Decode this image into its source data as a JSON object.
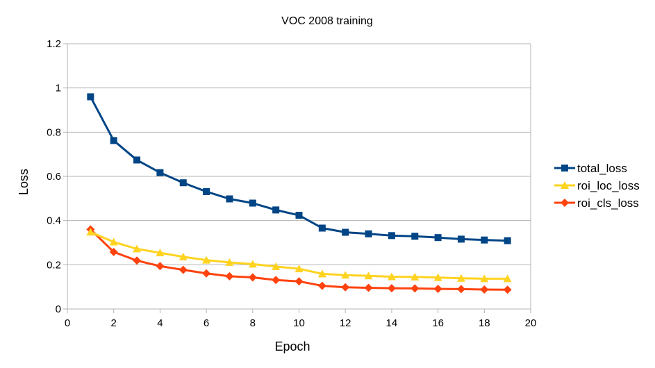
{
  "chart_data": {
    "type": "line",
    "title": "VOC 2008 training",
    "xlabel": "Epoch",
    "ylabel": "Loss",
    "xlim": [
      0,
      20
    ],
    "ylim": [
      0,
      1.2
    ],
    "x_ticks": [
      "0",
      "2",
      "4",
      "6",
      "8",
      "10",
      "12",
      "14",
      "16",
      "18",
      "20"
    ],
    "y_ticks": [
      "0",
      "0.2",
      "0.4",
      "0.6",
      "0.8",
      "1",
      "1.2"
    ],
    "grid": "horizontal",
    "legend_position": "right",
    "x": [
      1,
      2,
      3,
      4,
      5,
      6,
      7,
      8,
      9,
      10,
      11,
      12,
      13,
      14,
      15,
      16,
      17,
      18,
      19
    ],
    "series": [
      {
        "name": "total_loss",
        "color": "#004586",
        "marker": "square",
        "values": [
          0.96,
          0.762,
          0.674,
          0.617,
          0.571,
          0.531,
          0.498,
          0.479,
          0.448,
          0.424,
          0.366,
          0.347,
          0.34,
          0.332,
          0.329,
          0.323,
          0.316,
          0.312,
          0.309
        ]
      },
      {
        "name": "roi_loc_loss",
        "color": "#ffd320",
        "marker": "triangle",
        "values": [
          0.348,
          0.303,
          0.272,
          0.254,
          0.236,
          0.221,
          0.211,
          0.203,
          0.192,
          0.182,
          0.159,
          0.153,
          0.15,
          0.146,
          0.145,
          0.142,
          0.139,
          0.137,
          0.137
        ]
      },
      {
        "name": "roi_cls_loss",
        "color": "#ff420e",
        "marker": "diamond",
        "values": [
          0.36,
          0.258,
          0.219,
          0.194,
          0.177,
          0.161,
          0.148,
          0.143,
          0.131,
          0.125,
          0.105,
          0.098,
          0.096,
          0.094,
          0.093,
          0.091,
          0.09,
          0.088,
          0.087
        ]
      }
    ]
  }
}
